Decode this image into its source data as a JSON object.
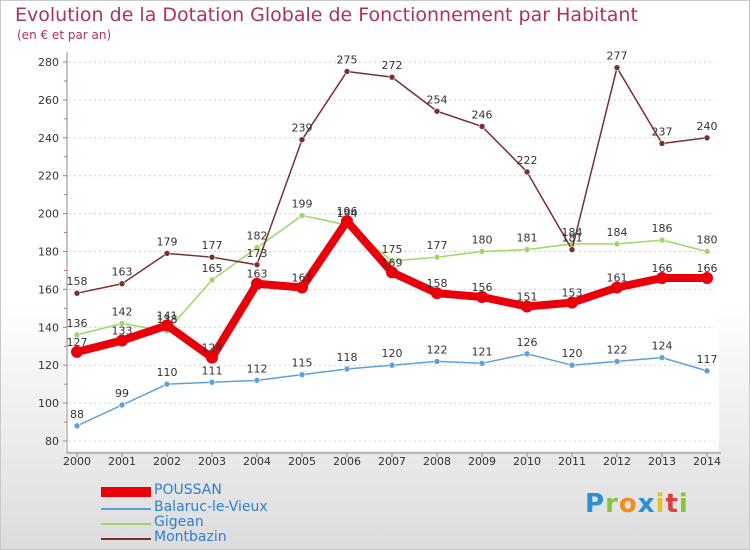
{
  "chart_data": {
    "type": "line",
    "title": "Evolution de la Dotation Globale de Fonctionnement par Habitant",
    "subtitle": "(en € et par an)",
    "x": [
      "2000",
      "2001",
      "2002",
      "2003",
      "2004",
      "2005",
      "2006",
      "2007",
      "2008",
      "2009",
      "2010",
      "2011",
      "2012",
      "2013",
      "2014"
    ],
    "ylim": [
      80,
      280
    ],
    "yticks": [
      "80",
      "100",
      "120",
      "140",
      "160",
      "180",
      "200",
      "220",
      "240",
      "260",
      "280"
    ],
    "grid": "horizontal dashed",
    "legend": "bottom-left",
    "series": [
      {
        "name": "POUSSAN",
        "color": "#e8000b",
        "width": 8,
        "values": [
          127,
          133,
          141,
          124,
          163,
          161,
          196,
          169,
          158,
          156,
          151,
          153,
          161,
          166,
          166
        ],
        "labels": [
          "127",
          "133",
          "141",
          "124",
          "163",
          "161",
          "196",
          "169",
          "158",
          "156",
          "151",
          "153",
          "161",
          "166",
          "166"
        ]
      },
      {
        "name": "Balaruc-le-Vieux",
        "color": "#5fa0d8",
        "width": 1.5,
        "values": [
          88,
          99,
          110,
          111,
          112,
          115,
          118,
          120,
          122,
          121,
          126,
          120,
          122,
          124,
          117
        ],
        "labels": [
          "88",
          "99",
          "110",
          "111",
          "112",
          "115",
          "118",
          "120",
          "122",
          "121",
          "126",
          "120",
          "122",
          "124",
          "117"
        ]
      },
      {
        "name": "Gigean",
        "color": "#9ed66a",
        "width": 1.5,
        "values": [
          136,
          142,
          138,
          165,
          182,
          199,
          194,
          175,
          177,
          180,
          181,
          184,
          184,
          186,
          180
        ],
        "labels": [
          "136",
          "142",
          "138",
          "165",
          "182",
          "199",
          "194",
          "175",
          "177",
          "180",
          "181",
          "184",
          "184",
          "186",
          "180"
        ]
      },
      {
        "name": "Montbazin",
        "color": "#7a2f2f",
        "width": 1.5,
        "values": [
          158,
          163,
          179,
          177,
          173,
          239,
          275,
          272,
          254,
          246,
          222,
          181,
          277,
          237,
          240
        ],
        "labels": [
          "158",
          "163",
          "179",
          "177",
          "173",
          "239",
          "275",
          "272",
          "254",
          "246",
          "222",
          "181",
          "277",
          "237",
          "240"
        ]
      }
    ]
  },
  "logo": {
    "letters": [
      "P",
      "r",
      "o",
      "x",
      "i",
      "t",
      "i"
    ],
    "colors": [
      "#2b8fd6",
      "#8ac23d",
      "#f28c1e",
      "#2b8fd6",
      "#e8c020",
      "#e03c3c",
      "#8ac23d"
    ]
  }
}
